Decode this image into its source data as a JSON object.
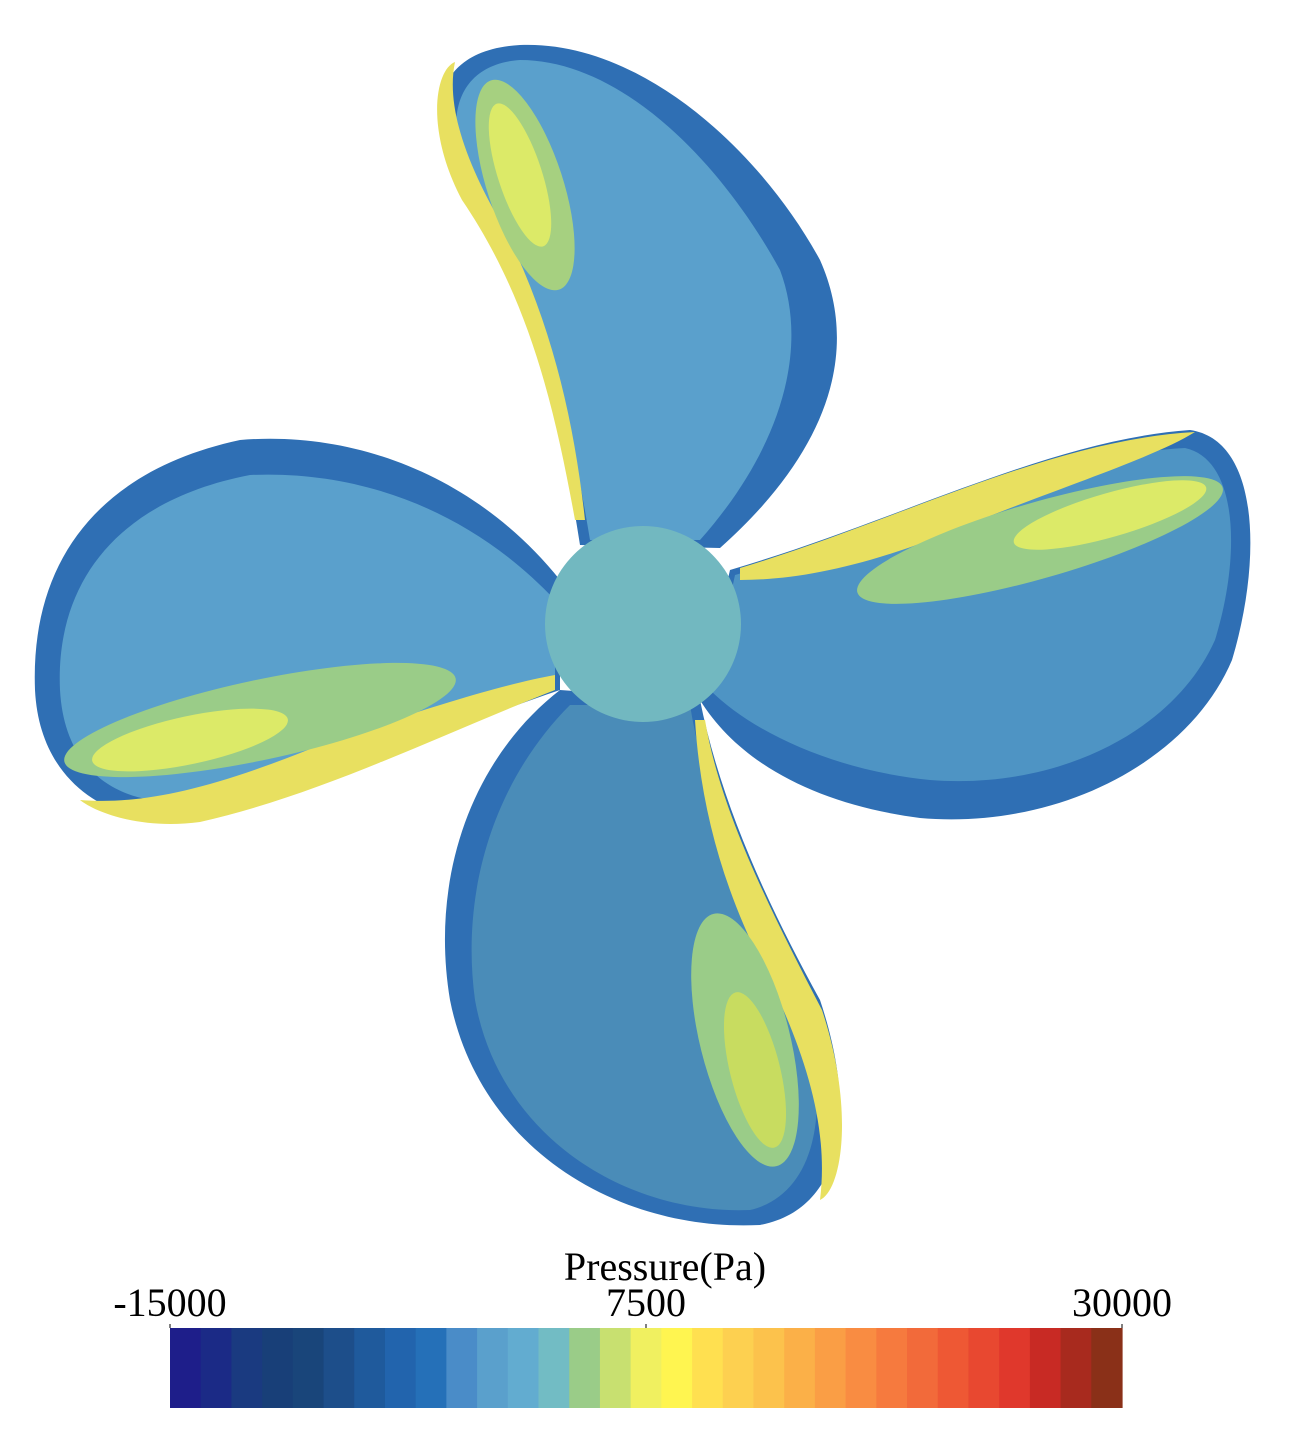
{
  "colorbar": {
    "title": "Pressure(Pa)",
    "range": [
      -15000,
      30000
    ],
    "ticks": [
      -15000,
      7500,
      30000
    ],
    "colors": [
      "#1e1e8a",
      "#1b2a86",
      "#1a3a80",
      "#183f78",
      "#19457a",
      "#1d4e8a",
      "#1f5a9c",
      "#2264ad",
      "#2570b8",
      "#4a8cc8",
      "#5aa0cc",
      "#62acd0",
      "#72bcc4",
      "#9acc88",
      "#c8e070",
      "#f0f060",
      "#fff550",
      "#ffe050",
      "#fdd050",
      "#fcc24c",
      "#fbb048",
      "#fa9e45",
      "#f98c42",
      "#f67a3e",
      "#f26a3a",
      "#ee5834",
      "#e84830",
      "#e0382c",
      "#c82a24",
      "#a82a1e",
      "#8a3018"
    ]
  }
}
